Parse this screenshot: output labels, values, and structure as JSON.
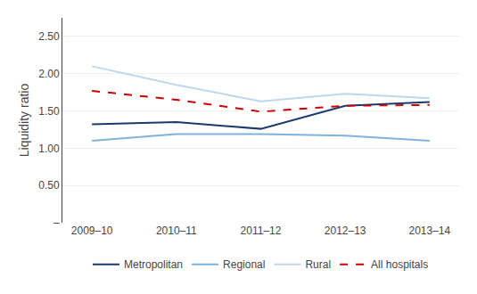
{
  "chart_data": {
    "type": "line",
    "ylabel": "Liquidity ratio",
    "categories": [
      "2009–10",
      "2010–11",
      "2011–12",
      "2012–13",
      "2013–14"
    ],
    "series": [
      {
        "name": "Metropolitan",
        "color": "#1a3a6b",
        "values": [
          1.32,
          1.35,
          1.26,
          1.57,
          1.62
        ]
      },
      {
        "name": "Regional",
        "color": "#7fb2d9",
        "values": [
          1.1,
          1.19,
          1.19,
          1.17,
          1.1
        ]
      },
      {
        "name": "Rural",
        "color": "#bdd7ee",
        "values": [
          2.1,
          1.85,
          1.63,
          1.73,
          1.67
        ]
      },
      {
        "name": "All hospitals",
        "color": "#cc0000",
        "values": [
          1.77,
          1.65,
          1.49,
          1.57,
          1.58
        ],
        "line_style": "dashed"
      }
    ],
    "ylim": [
      0,
      2.75
    ],
    "yticks": [
      {
        "value": 0.0,
        "label": "–"
      },
      {
        "value": 0.5,
        "label": "0.50"
      },
      {
        "value": 1.0,
        "label": "1.00"
      },
      {
        "value": 1.5,
        "label": "1.50"
      },
      {
        "value": 2.0,
        "label": "2.00"
      },
      {
        "value": 2.5,
        "label": "2.50"
      }
    ],
    "grid": true,
    "legend": "bottom"
  }
}
